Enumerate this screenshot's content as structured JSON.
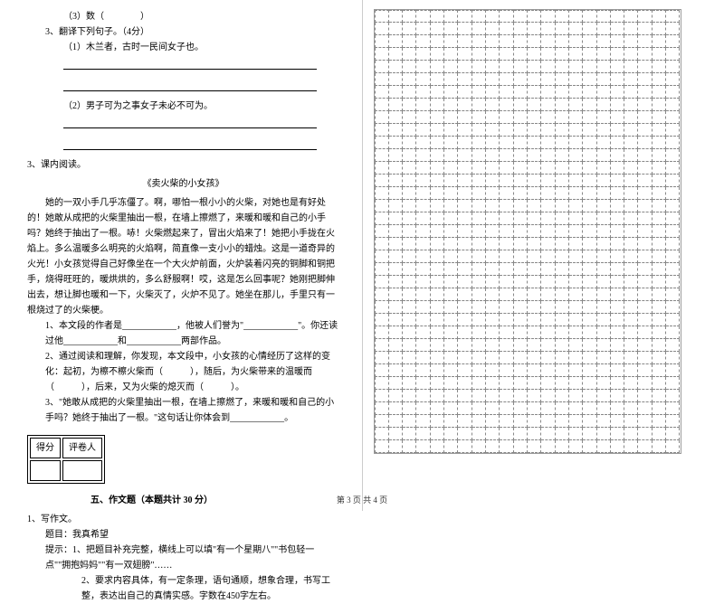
{
  "q3_3_line": "（3）数（　　　　）",
  "q3_head": "3、翻译下列句子。（4分）",
  "q3_1": "（1）木兰者，古时一民间女子也。",
  "q3_2": "（2）男子可为之事女子未必不可为。",
  "section3_head": "3、课内阅读。",
  "passage_title": "《卖火柴的小女孩》",
  "passage_p1": "她的一双小手几乎冻僵了。啊，哪怕一根小小的火柴，对她也是有好处的！她敢从成把的火柴里抽出一根，在墙上擦燃了，来暖和暖和自己的小手吗？她终于抽出了一根。哧！火柴燃起来了，冒出火焰来了！她把小手拢在火焰上。多么温暖多么明亮的火焰啊，简直像一支小小的蜡烛。这是一道奇异的火光！小女孩觉得自己好像坐在一个大火炉前面，火炉装着闪亮的铜脚和铜把手，烧得旺旺的，暖烘烘的，多么舒服啊！哎，这是怎么回事呢？她刚把脚伸出去，想让脚也暖和一下，火柴灭了，火炉不见了。她坐在那儿，手里只有一根烧过了的火柴梗。",
  "q1": "1、本文段的作者是____________，他被人们誉为\"____________\"。你还读过他____________和____________两部作品。",
  "q2": "2、通过阅读和理解，你发现，本文段中，小女孩的心情经历了这样的变化：起初，为檫不檫火柴而（　　　），随后，为火柴带来的温暖而（　　　），后来，又为火柴的熄灭而（　　　）。",
  "q3": "3、\"她敢从成把的火柴里抽出一根，在墙上擦燃了，来暖和暖和自己的小手吗？她终于抽出了一根。\"这句话让你体会到____________。",
  "score_label1": "得分",
  "score_label2": "评卷人",
  "section5_title": "五、作文题（本题共计 30 分）",
  "c1": "1、写作文。",
  "c2": "题目：我真希望",
  "c3": "提示：1、把题目补充完整，横线上可以填\"有一个星期八\"\"书包轻一点\"\"拥抱妈妈\"\"有一双翅膀\"……",
  "c4": "2、要求内容具体，有一定条理，语句通顺，想象合理，书写工整，表达出自己的真情实感。字数在450字左右。",
  "footer": "第 3 页  共 4 页",
  "grid": {
    "rows": 35,
    "cols": 22
  }
}
